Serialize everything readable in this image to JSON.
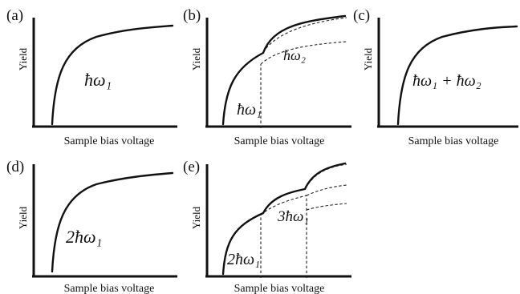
{
  "panels": [
    {
      "id": "a",
      "tag": "(a)",
      "ylabel": "Yield",
      "xlabel": "Sample bias voltage",
      "annotations": [
        "ħω₁"
      ]
    },
    {
      "id": "b",
      "tag": "(b)",
      "ylabel": "Yield",
      "xlabel": "Sample bias voltage",
      "annotations": [
        "ħω₁",
        "ħω₂"
      ]
    },
    {
      "id": "c",
      "tag": "(c)",
      "ylabel": "Yield",
      "xlabel": "Sample bias voltage",
      "annotations": [
        "ħω₁ + ħω₂"
      ]
    },
    {
      "id": "d",
      "tag": "(d)",
      "ylabel": "Yield",
      "xlabel": "Sample bias voltage",
      "annotations": [
        "2ħω₁"
      ]
    },
    {
      "id": "e",
      "tag": "(e)",
      "ylabel": "Yield",
      "xlabel": "Sample bias voltage",
      "annotations": [
        "2ħω₁",
        "3ħω₁"
      ]
    }
  ]
}
